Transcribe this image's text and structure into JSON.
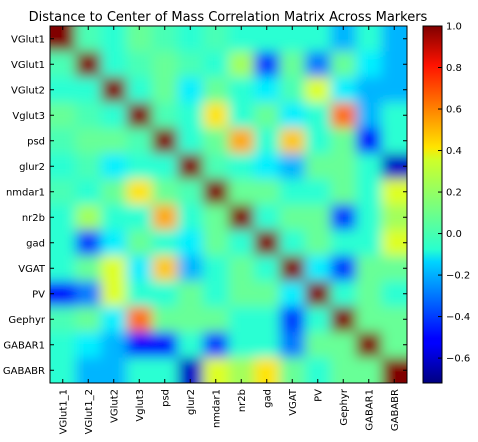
{
  "chart_data": {
    "type": "heatmap",
    "title": "Distance to Center of Mass Correlation Matrix Across Markers",
    "row_labels": [
      "VGlut1",
      "VGlut1",
      "VGlut2",
      "Vglut3",
      "psd",
      "glur2",
      "nmdar1",
      "nr2b",
      "gad",
      "VGAT",
      "PV",
      "Gephyr",
      "GABAR1",
      "GABABR"
    ],
    "col_labels": [
      "VGlut1_1",
      "VGlut1_2",
      "VGlut2",
      "Vglut3",
      "psd",
      "glur2",
      "nmdar1",
      "nr2b",
      "gad",
      "VGAT",
      "PV",
      "Gephyr",
      "GABAR1",
      "GABABR"
    ],
    "values": [
      [
        1.0,
        0.05,
        0.0,
        0.1,
        0.05,
        0.0,
        0.05,
        0.0,
        0.0,
        0.0,
        0.0,
        -0.2,
        0.0,
        -0.2
      ],
      [
        0.05,
        1.0,
        0.0,
        0.05,
        0.1,
        0.05,
        0.0,
        0.2,
        -0.4,
        0.1,
        -0.3,
        0.1,
        -0.1,
        -0.2
      ],
      [
        0.0,
        0.0,
        1.0,
        0.0,
        0.1,
        -0.1,
        0.1,
        0.0,
        -0.1,
        0.05,
        0.3,
        -0.1,
        -0.2,
        -0.2
      ],
      [
        0.1,
        0.05,
        0.0,
        1.0,
        0.05,
        0.0,
        0.4,
        0.0,
        0.1,
        -0.1,
        0.0,
        0.6,
        -0.2,
        0.0
      ],
      [
        0.05,
        0.1,
        0.1,
        0.05,
        1.0,
        0.0,
        0.1,
        0.5,
        0.0,
        0.45,
        0.0,
        0.1,
        -0.5,
        0.0
      ],
      [
        0.0,
        0.05,
        -0.1,
        0.0,
        0.0,
        1.0,
        0.05,
        0.0,
        -0.1,
        -0.2,
        0.1,
        0.1,
        0.0,
        -0.6
      ],
      [
        0.05,
        0.0,
        0.1,
        0.4,
        0.1,
        0.05,
        1.0,
        0.1,
        0.1,
        0.0,
        0.0,
        0.1,
        0.0,
        0.3
      ],
      [
        0.0,
        0.2,
        0.0,
        0.0,
        0.5,
        0.0,
        0.1,
        1.0,
        0.0,
        0.1,
        0.1,
        -0.4,
        0.0,
        0.2
      ],
      [
        0.0,
        -0.4,
        -0.1,
        0.1,
        0.0,
        -0.1,
        0.1,
        0.0,
        1.0,
        0.0,
        0.1,
        0.0,
        0.0,
        0.3
      ],
      [
        0.0,
        0.1,
        0.3,
        -0.1,
        0.45,
        -0.2,
        0.0,
        0.1,
        0.0,
        1.0,
        -0.1,
        -0.4,
        0.1,
        0.1
      ],
      [
        -0.5,
        -0.3,
        0.3,
        0.0,
        0.0,
        0.1,
        0.0,
        0.1,
        0.1,
        -0.1,
        1.0,
        0.0,
        0.1,
        0.0
      ],
      [
        0.05,
        0.1,
        -0.1,
        0.6,
        0.1,
        0.1,
        0.1,
        0.0,
        0.0,
        -0.4,
        0.0,
        1.0,
        0.1,
        0.1
      ],
      [
        0.0,
        -0.1,
        -0.2,
        -0.5,
        -0.5,
        0.0,
        -0.4,
        0.0,
        0.0,
        -0.3,
        0.1,
        0.1,
        1.0,
        0.1
      ],
      [
        0.0,
        -0.2,
        -0.2,
        0.0,
        0.0,
        -0.6,
        0.3,
        0.2,
        0.4,
        0.1,
        0.0,
        0.1,
        0.1,
        1.0
      ]
    ],
    "vmin": -0.72,
    "vmax": 1.0,
    "colormap": "jet",
    "colorbar_ticks": [
      "1.0",
      "0.8",
      "0.6",
      "0.4",
      "0.2",
      "0.0",
      "−0.2",
      "−0.4",
      "−0.6"
    ],
    "colorbar_tick_values": [
      1.0,
      0.8,
      0.6,
      0.4,
      0.2,
      0.0,
      -0.2,
      -0.4,
      -0.6
    ],
    "interpolation": "bilinear",
    "grid": false
  }
}
